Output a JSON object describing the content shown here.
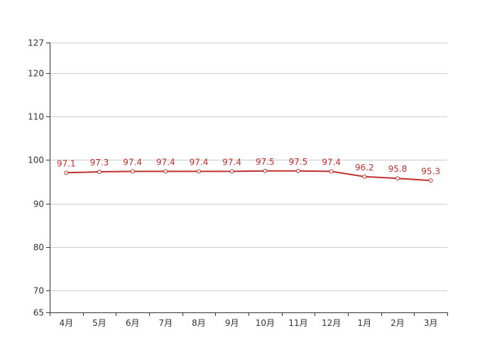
{
  "chart_data": {
    "type": "line",
    "categories": [
      "4月",
      "5月",
      "6月",
      "7月",
      "8月",
      "9月",
      "10月",
      "11月",
      "12月",
      "1月",
      "2月",
      "3月"
    ],
    "series": [
      {
        "values": [
          97.1,
          97.3,
          97.4,
          97.4,
          97.4,
          97.4,
          97.5,
          97.5,
          97.4,
          96.2,
          95.8,
          95.3
        ]
      }
    ],
    "data_labels": [
      "97.1",
      "97.3",
      "97.4",
      "97.4",
      "97.4",
      "97.4",
      "97.5",
      "97.5",
      "97.4",
      "96.2",
      "95.8",
      "95.3"
    ],
    "yticks": [
      65,
      70,
      80,
      90,
      100,
      110,
      120,
      127
    ],
    "ytick_labels": [
      "65",
      "70",
      "80",
      "90",
      "100",
      "110",
      "120",
      "127"
    ],
    "ylim": [
      65,
      127
    ],
    "title": "",
    "xlabel": "",
    "ylabel": "",
    "grid": true,
    "legend": "none",
    "colors": {
      "line": "#c0302f",
      "label": "#c0302f",
      "marker_fill": "#ffffff"
    }
  }
}
